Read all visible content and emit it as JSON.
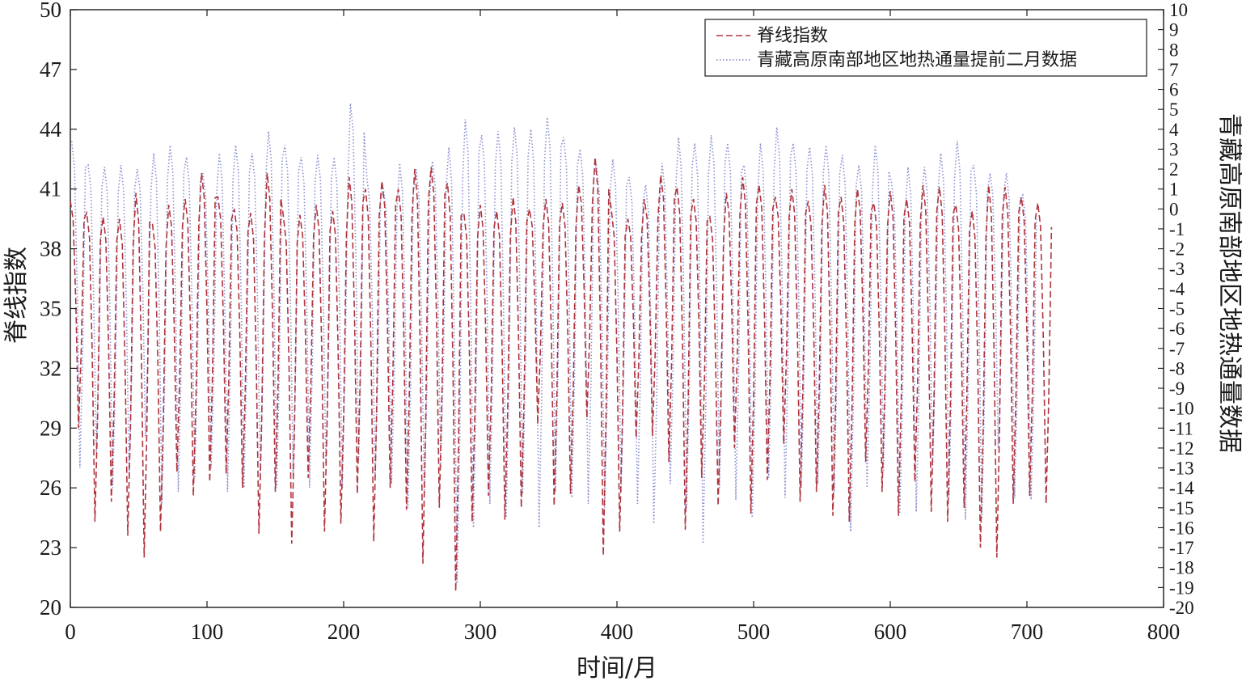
{
  "chart_data": {
    "type": "line",
    "xlabel": "时间/月",
    "ylabel_left": "脊线指数",
    "ylabel_right": "青藏高原南部地区地热通量数据",
    "xlim": [
      0,
      800
    ],
    "ylim_left": [
      20,
      50
    ],
    "ylim_right": [
      -20,
      10
    ],
    "x_ticks": [
      0,
      100,
      200,
      300,
      400,
      500,
      600,
      700,
      800
    ],
    "y_ticks_left": [
      20,
      23,
      26,
      29,
      32,
      35,
      38,
      41,
      44,
      47,
      50
    ],
    "y_ticks_right": [
      -20,
      -19,
      -18,
      -17,
      -16,
      -15,
      -14,
      -13,
      -12,
      -11,
      -10,
      -9,
      -8,
      -7,
      -6,
      -5,
      -4,
      -3,
      -2,
      -1,
      0,
      1,
      2,
      3,
      4,
      5,
      6,
      7,
      8,
      9,
      10
    ],
    "grid": false,
    "legend_position": "top-right",
    "sampling_interval_months": 12,
    "series": [
      {
        "name": "脊线指数",
        "axis": "left",
        "style": "dashed",
        "color": "#b0353f",
        "peaks": [
          40.4,
          39.8,
          39.6,
          39.5,
          40.8,
          39.3,
          40.2,
          40.5,
          41.8,
          40.6,
          40.0,
          39.8,
          41.8,
          39.6,
          39.7,
          40.2,
          39.9,
          41.6,
          41.0,
          41.4,
          41.0,
          42.0,
          42.1,
          41.3,
          39.8,
          40.2,
          39.9,
          40.6,
          40.0,
          40.5,
          40.3,
          41.2,
          42.6,
          39.9,
          39.5,
          40.5,
          41.7,
          41.1,
          40.5,
          39.6,
          40.8,
          41.6,
          41.2,
          40.6,
          41.0,
          40.4,
          41.2,
          40.6,
          41.0,
          40.3,
          40.9,
          40.5,
          41.2,
          41.1,
          40.2,
          39.9,
          41.2,
          41.1,
          40.6,
          40.3
        ],
        "troughs": [
          29.0,
          24.3,
          25.3,
          23.6,
          22.5,
          23.8,
          26.8,
          25.6,
          26.3,
          26.7,
          26.0,
          23.7,
          25.8,
          23.2,
          26.5,
          23.8,
          24.2,
          25.7,
          23.3,
          26.0,
          24.9,
          22.2,
          25.0,
          20.8,
          24.3,
          25.6,
          24.4,
          25.0,
          29.2,
          25.1,
          25.7,
          29.5,
          22.6,
          23.8,
          28.5,
          28.6,
          27.3,
          23.9,
          26.5,
          25.1,
          28.0,
          24.7,
          26.4,
          28.2,
          25.3,
          25.8,
          24.6,
          24.3,
          27.3,
          25.8,
          24.6,
          26.3,
          24.8,
          24.3,
          25.0,
          23.0,
          22.5,
          25.2,
          25.6,
          25.2
        ]
      },
      {
        "name": "青藏高原南部地区地热通量提前二月数据",
        "axis": "right",
        "style": "dotted",
        "color": "#8a8fd0",
        "peaks": [
          3.4,
          2.2,
          2.1,
          2.2,
          2.0,
          2.8,
          3.2,
          2.6,
          1.8,
          2.8,
          3.2,
          2.8,
          3.9,
          3.2,
          2.6,
          2.7,
          2.6,
          5.3,
          1.6,
          1.1,
          2.3,
          2.0,
          2.4,
          3.1,
          4.5,
          3.7,
          3.9,
          4.1,
          4.0,
          4.6,
          3.6,
          3.0,
          2.2,
          2.5,
          1.6,
          1.2,
          2.3,
          3.6,
          3.3,
          3.7,
          3.3,
          2.2,
          3.3,
          4.1,
          3.3,
          3.1,
          3.2,
          2.7,
          2.2,
          3.2,
          1.3,
          2.1,
          2.1,
          2.8,
          3.4,
          2.2,
          1.8,
          1.8,
          0.7
        ],
        "troughs": [
          -13.0,
          -12.2,
          -14.0,
          -13.5,
          -11.4,
          -14.8,
          -14.2,
          -13.5,
          -13.0,
          -14.2,
          -14.0,
          -13.6,
          -14.0,
          -13.4,
          -14.0,
          -12.8,
          -14.0,
          -12.6,
          -13.5,
          -13.8,
          -15.0,
          -14.5,
          -13.0,
          -18.8,
          -16.0,
          -14.8,
          -15.5,
          -14.3,
          -16.0,
          -14.2,
          -14.5,
          -14.8,
          -15.0,
          -14.2,
          -14.8,
          -15.8,
          -13.8,
          -15.0,
          -16.8,
          -14.0,
          -14.6,
          -15.5,
          -13.5,
          -14.5,
          -14.0,
          -13.8,
          -14.2,
          -16.2,
          -14.0,
          -13.2,
          -15.3,
          -15.2,
          -13.0,
          -14.5,
          -15.6,
          -15.5,
          -12.0,
          -14.5,
          -14.6
        ]
      }
    ]
  }
}
